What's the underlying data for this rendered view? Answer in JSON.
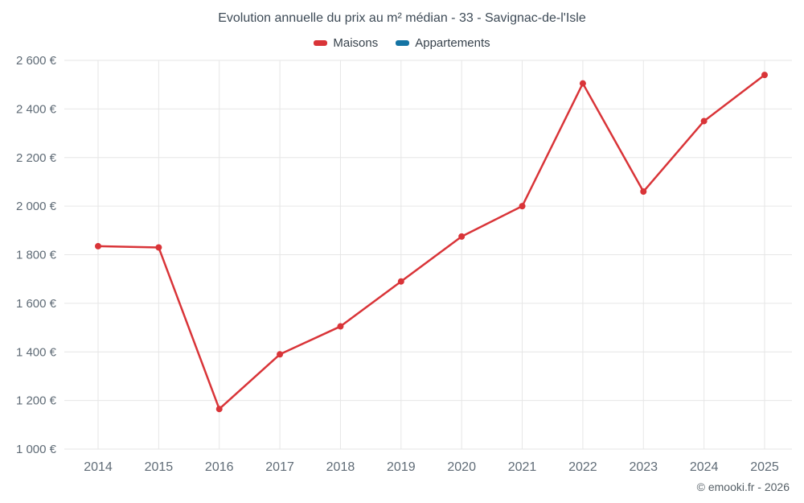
{
  "chart_data": {
    "type": "line",
    "title": "Evolution annuelle du prix au m² médian - 33 - Savignac-de-l'Isle",
    "x": [
      2014,
      2015,
      2016,
      2017,
      2018,
      2019,
      2020,
      2021,
      2022,
      2023,
      2024,
      2025
    ],
    "series": [
      {
        "name": "Maisons",
        "color": "#d93438",
        "values": [
          1835,
          1830,
          1165,
          1390,
          1505,
          1690,
          1875,
          2000,
          2505,
          2060,
          2350,
          2540
        ]
      },
      {
        "name": "Appartements",
        "color": "#1474a4",
        "values": []
      }
    ],
    "ylim": [
      1000,
      2600
    ],
    "ytick_step": 200,
    "y_suffix": " €",
    "grid": true,
    "legend_position": "top",
    "grid_color": "#e6e6e6",
    "tick_label_color": "#5f6b76"
  },
  "footer": {
    "copyright": "© emooki.fr - 2026"
  }
}
